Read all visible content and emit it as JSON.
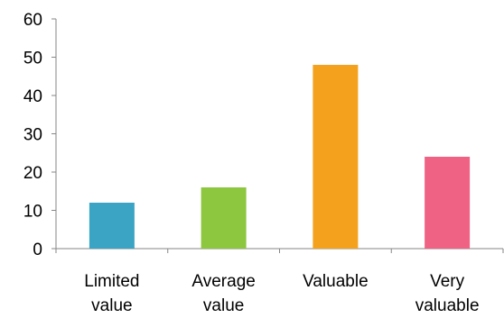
{
  "chart_data": {
    "type": "bar",
    "title": "",
    "xlabel": "",
    "ylabel": "",
    "categories": [
      [
        "Limited",
        "value"
      ],
      [
        "Average",
        "value"
      ],
      [
        "Valuable"
      ],
      [
        "Very",
        "valuable"
      ]
    ],
    "values": [
      12,
      16,
      48,
      24
    ],
    "colors": [
      "#3ba3c4",
      "#8dc63f",
      "#f4a21e",
      "#ef6283"
    ],
    "ylim": [
      0,
      60
    ],
    "yticks": [
      "0",
      "10",
      "20",
      "30",
      "40",
      "50",
      "60"
    ],
    "ytick_values": [
      0,
      10,
      20,
      30,
      40,
      50,
      60
    ],
    "grid": false,
    "legend": "none"
  }
}
